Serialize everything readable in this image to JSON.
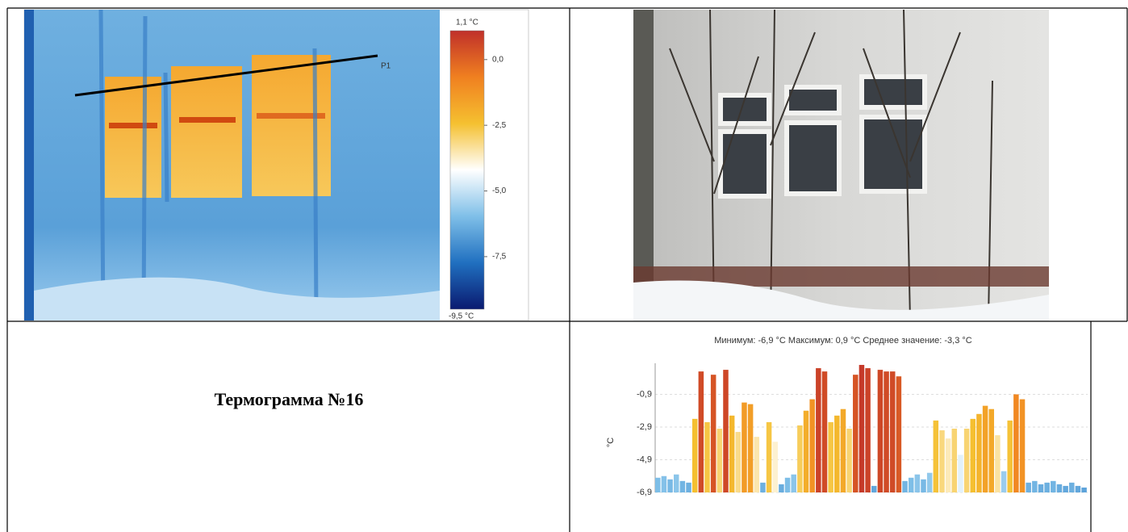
{
  "thermogram": {
    "line_label": "P1",
    "colorbar": {
      "lim": [
        {
          "value": -9.5,
          "label": "-9,5 °C"
        },
        {
          "value": 1.1,
          "label": "1,1 °C"
        }
      ],
      "ticks": [
        {
          "value": 0,
          "label": "0,0"
        },
        {
          "value": -2.5,
          "label": "-2,5"
        },
        {
          "value": -5,
          "label": "-5,0"
        },
        {
          "value": -7.5,
          "label": "-7,5"
        }
      ],
      "colormap": [
        "#0a1a70",
        "#2070c0",
        "#7fbfe8",
        "#ffffff",
        "#f5c030",
        "#f08020",
        "#c0302a"
      ]
    }
  },
  "caption": "Термограмма №16",
  "chart_data": {
    "type": "bar",
    "title": "Минимум: -6,9 °C Максимум: 0,9 °C Среднее значение: -3,3 °C",
    "y_label": "°C",
    "ylim": [
      -6.9,
      1.0
    ],
    "yticks": [
      {
        "value": -0.9,
        "label": "-0,9"
      },
      {
        "value": -2.9,
        "label": "-2,9"
      },
      {
        "value": -4.9,
        "label": "-4,9"
      },
      {
        "value": -6.9,
        "label": "-6,9"
      }
    ],
    "grid": true,
    "values": [
      -6.0,
      -5.9,
      -6.1,
      -5.8,
      -6.2,
      -6.3,
      -2.4,
      0.5,
      -2.6,
      0.3,
      -3.0,
      0.6,
      -2.2,
      -3.2,
      -1.4,
      -1.5,
      -3.5,
      -6.3,
      -2.6,
      -3.8,
      -6.4,
      -6.0,
      -5.8,
      -2.8,
      -1.9,
      -1.2,
      0.7,
      0.5,
      -2.6,
      -2.2,
      -1.8,
      -3.0,
      0.3,
      0.9,
      0.7,
      -6.5,
      0.6,
      0.5,
      0.5,
      0.2,
      -6.2,
      -6.0,
      -5.8,
      -6.1,
      -5.7,
      -2.5,
      -3.1,
      -3.6,
      -3.0,
      -4.6,
      -3.0,
      -2.4,
      -2.1,
      -1.6,
      -1.8,
      -3.4,
      -5.6,
      -2.5,
      -0.9,
      -1.2,
      -6.3,
      -6.2,
      -6.4,
      -6.3,
      -6.2,
      -6.4,
      -6.5,
      -6.3,
      -6.5,
      -6.6
    ]
  }
}
